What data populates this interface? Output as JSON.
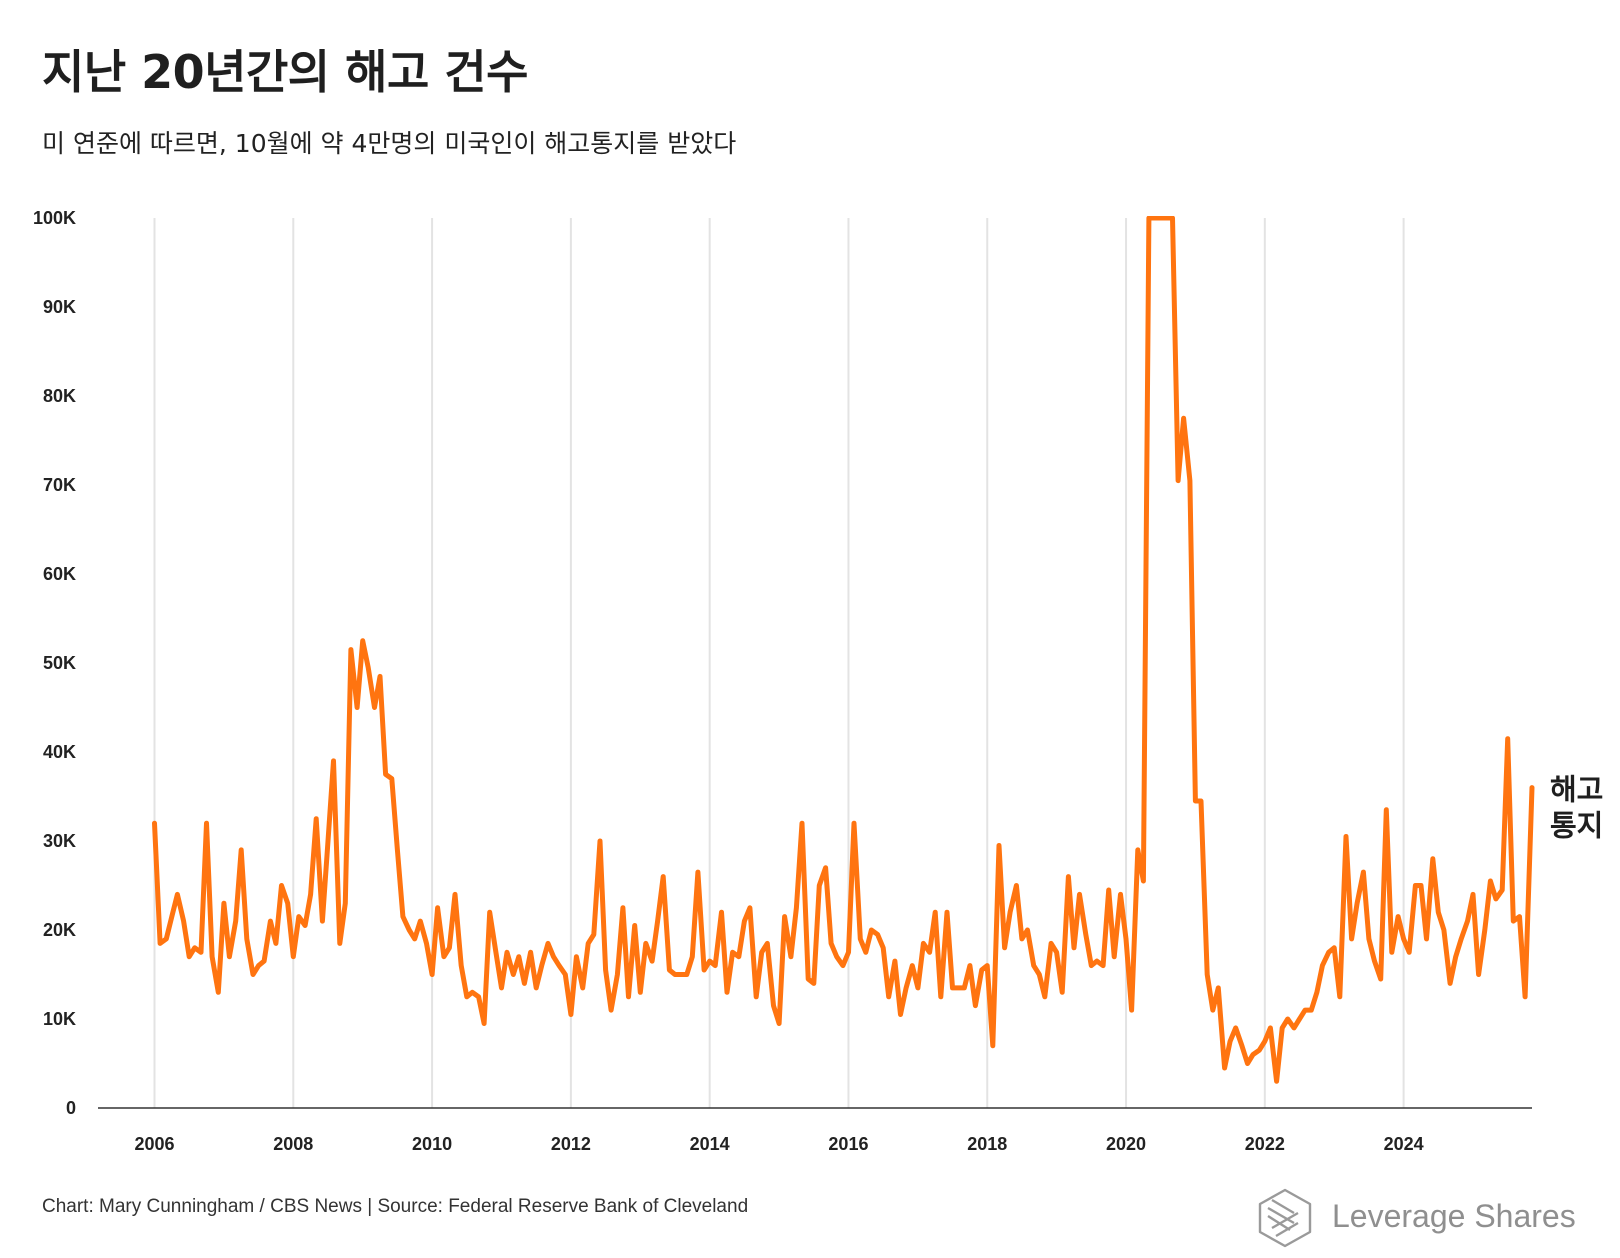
{
  "header": {
    "title": "지난 20년간의 해고 건수",
    "subtitle": "미 연준에 따르면, 10월에 약 4만명의 미국인이 해고통지를 받았다"
  },
  "footer": {
    "credit": "Chart: Mary Cunningham / CBS News | Source: Federal Reserve Bank of Cleveland"
  },
  "logo": {
    "text": "Leverage Shares",
    "icon": "leverage-shares-logo-icon"
  },
  "colors": {
    "line": "#ff7410",
    "grid": "#e3e3e3",
    "axis": "#333333",
    "text": "#222222"
  },
  "chart_data": {
    "type": "line",
    "title": "지난 20년간의 해고 건수",
    "subtitle": "미 연준에 따르면, 10월에 약 4만명의 미국인이 해고통지를 받았다",
    "xlabel": "",
    "ylabel": "",
    "xlim": [
      2006,
      2025.85
    ],
    "ylim": [
      0,
      100000
    ],
    "grid": "vertical",
    "x_ticks": [
      2006,
      2008,
      2010,
      2012,
      2014,
      2016,
      2018,
      2020,
      2022,
      2024
    ],
    "x_tick_labels": [
      "2006",
      "2008",
      "2010",
      "2012",
      "2014",
      "2016",
      "2018",
      "2020",
      "2022",
      "2024"
    ],
    "y_ticks": [
      0,
      10000,
      20000,
      30000,
      40000,
      50000,
      60000,
      70000,
      80000,
      90000,
      100000
    ],
    "y_tick_labels": [
      "0",
      "10K",
      "20K",
      "30K",
      "40K",
      "50K",
      "60K",
      "70K",
      "80K",
      "90K",
      "100K"
    ],
    "series_label": [
      "해고",
      "통지"
    ],
    "series": [
      {
        "name": "해고통지",
        "points": [
          [
            2006.0,
            32000
          ],
          [
            2006.08,
            18500
          ],
          [
            2006.17,
            19000
          ],
          [
            2006.25,
            21500
          ],
          [
            2006.33,
            24000
          ],
          [
            2006.42,
            21000
          ],
          [
            2006.5,
            17000
          ],
          [
            2006.58,
            18000
          ],
          [
            2006.67,
            17500
          ],
          [
            2006.75,
            32000
          ],
          [
            2006.83,
            17000
          ],
          [
            2006.92,
            13000
          ],
          [
            2007.0,
            23000
          ],
          [
            2007.08,
            17000
          ],
          [
            2007.17,
            21000
          ],
          [
            2007.25,
            29000
          ],
          [
            2007.33,
            19000
          ],
          [
            2007.42,
            15000
          ],
          [
            2007.5,
            16000
          ],
          [
            2007.58,
            16500
          ],
          [
            2007.67,
            21000
          ],
          [
            2007.75,
            18500
          ],
          [
            2007.83,
            25000
          ],
          [
            2007.92,
            23000
          ],
          [
            2008.0,
            17000
          ],
          [
            2008.08,
            21500
          ],
          [
            2008.17,
            20500
          ],
          [
            2008.25,
            24000
          ],
          [
            2008.33,
            32500
          ],
          [
            2008.42,
            21000
          ],
          [
            2008.5,
            30000
          ],
          [
            2008.58,
            39000
          ],
          [
            2008.67,
            18500
          ],
          [
            2008.75,
            23000
          ],
          [
            2008.83,
            51500
          ],
          [
            2008.92,
            45000
          ],
          [
            2009.0,
            52500
          ],
          [
            2009.08,
            49500
          ],
          [
            2009.17,
            45000
          ],
          [
            2009.25,
            48500
          ],
          [
            2009.33,
            37500
          ],
          [
            2009.42,
            37000
          ],
          [
            2009.5,
            29000
          ],
          [
            2009.58,
            21500
          ],
          [
            2009.67,
            20000
          ],
          [
            2009.75,
            19000
          ],
          [
            2009.83,
            21000
          ],
          [
            2009.92,
            18500
          ],
          [
            2010.0,
            15000
          ],
          [
            2010.08,
            22500
          ],
          [
            2010.17,
            17000
          ],
          [
            2010.25,
            18000
          ],
          [
            2010.33,
            24000
          ],
          [
            2010.42,
            16000
          ],
          [
            2010.5,
            12500
          ],
          [
            2010.58,
            13000
          ],
          [
            2010.67,
            12500
          ],
          [
            2010.75,
            9500
          ],
          [
            2010.83,
            22000
          ],
          [
            2010.92,
            17500
          ],
          [
            2011.0,
            13500
          ],
          [
            2011.08,
            17500
          ],
          [
            2011.17,
            15000
          ],
          [
            2011.25,
            17000
          ],
          [
            2011.33,
            14000
          ],
          [
            2011.42,
            17500
          ],
          [
            2011.5,
            13500
          ],
          [
            2011.58,
            16000
          ],
          [
            2011.67,
            18500
          ],
          [
            2011.75,
            17000
          ],
          [
            2011.83,
            16000
          ],
          [
            2011.92,
            15000
          ],
          [
            2012.0,
            10500
          ],
          [
            2012.08,
            17000
          ],
          [
            2012.17,
            13500
          ],
          [
            2012.25,
            18500
          ],
          [
            2012.33,
            19500
          ],
          [
            2012.42,
            30000
          ],
          [
            2012.5,
            15500
          ],
          [
            2012.58,
            11000
          ],
          [
            2012.67,
            15000
          ],
          [
            2012.75,
            22500
          ],
          [
            2012.83,
            12500
          ],
          [
            2012.92,
            20500
          ],
          [
            2013.0,
            13000
          ],
          [
            2013.08,
            18500
          ],
          [
            2013.17,
            16500
          ],
          [
            2013.25,
            21000
          ],
          [
            2013.33,
            26000
          ],
          [
            2013.42,
            15500
          ],
          [
            2013.5,
            15000
          ],
          [
            2013.58,
            15000
          ],
          [
            2013.67,
            15000
          ],
          [
            2013.75,
            17000
          ],
          [
            2013.83,
            26500
          ],
          [
            2013.92,
            15500
          ],
          [
            2014.0,
            16500
          ],
          [
            2014.08,
            16000
          ],
          [
            2014.17,
            22000
          ],
          [
            2014.25,
            13000
          ],
          [
            2014.33,
            17500
          ],
          [
            2014.42,
            17000
          ],
          [
            2014.5,
            21000
          ],
          [
            2014.58,
            22500
          ],
          [
            2014.67,
            12500
          ],
          [
            2014.75,
            17500
          ],
          [
            2014.83,
            18500
          ],
          [
            2014.92,
            11500
          ],
          [
            2015.0,
            9500
          ],
          [
            2015.08,
            21500
          ],
          [
            2015.17,
            17000
          ],
          [
            2015.25,
            22500
          ],
          [
            2015.33,
            32000
          ],
          [
            2015.42,
            14500
          ],
          [
            2015.5,
            14000
          ],
          [
            2015.58,
            25000
          ],
          [
            2015.67,
            27000
          ],
          [
            2015.75,
            18500
          ],
          [
            2015.83,
            17000
          ],
          [
            2015.92,
            16000
          ],
          [
            2016.0,
            17500
          ],
          [
            2016.08,
            32000
          ],
          [
            2016.17,
            19000
          ],
          [
            2016.25,
            17500
          ],
          [
            2016.33,
            20000
          ],
          [
            2016.42,
            19500
          ],
          [
            2016.5,
            18000
          ],
          [
            2016.58,
            12500
          ],
          [
            2016.67,
            16500
          ],
          [
            2016.75,
            10500
          ],
          [
            2016.83,
            13500
          ],
          [
            2016.92,
            16000
          ],
          [
            2017.0,
            13500
          ],
          [
            2017.08,
            18500
          ],
          [
            2017.17,
            17500
          ],
          [
            2017.25,
            22000
          ],
          [
            2017.33,
            12500
          ],
          [
            2017.42,
            22000
          ],
          [
            2017.5,
            13500
          ],
          [
            2017.58,
            13500
          ],
          [
            2017.67,
            13500
          ],
          [
            2017.75,
            16000
          ],
          [
            2017.83,
            11500
          ],
          [
            2017.92,
            15500
          ],
          [
            2018.0,
            16000
          ],
          [
            2018.08,
            7000
          ],
          [
            2018.17,
            29500
          ],
          [
            2018.25,
            18000
          ],
          [
            2018.33,
            22000
          ],
          [
            2018.42,
            25000
          ],
          [
            2018.5,
            19000
          ],
          [
            2018.58,
            20000
          ],
          [
            2018.67,
            16000
          ],
          [
            2018.75,
            15000
          ],
          [
            2018.83,
            12500
          ],
          [
            2018.92,
            18500
          ],
          [
            2019.0,
            17500
          ],
          [
            2019.08,
            13000
          ],
          [
            2019.17,
            26000
          ],
          [
            2019.25,
            18000
          ],
          [
            2019.33,
            24000
          ],
          [
            2019.42,
            19500
          ],
          [
            2019.5,
            16000
          ],
          [
            2019.58,
            16500
          ],
          [
            2019.67,
            16000
          ],
          [
            2019.75,
            24500
          ],
          [
            2019.83,
            17000
          ],
          [
            2019.92,
            24000
          ],
          [
            2020.0,
            19000
          ],
          [
            2020.08,
            11000
          ],
          [
            2020.17,
            29000
          ],
          [
            2020.25,
            25500
          ],
          [
            2020.33,
            100000
          ],
          [
            2020.42,
            100000
          ],
          [
            2020.5,
            100000
          ],
          [
            2020.58,
            100000
          ],
          [
            2020.67,
            100000
          ],
          [
            2020.75,
            70500
          ],
          [
            2020.83,
            77500
          ],
          [
            2020.92,
            70500
          ],
          [
            2021.0,
            34500
          ],
          [
            2021.08,
            34500
          ],
          [
            2021.17,
            15000
          ],
          [
            2021.25,
            11000
          ],
          [
            2021.33,
            13500
          ],
          [
            2021.42,
            4500
          ],
          [
            2021.5,
            7500
          ],
          [
            2021.58,
            9000
          ],
          [
            2021.67,
            7000
          ],
          [
            2021.75,
            5000
          ],
          [
            2021.83,
            6000
          ],
          [
            2021.92,
            6500
          ],
          [
            2022.0,
            7500
          ],
          [
            2022.08,
            9000
          ],
          [
            2022.17,
            3000
          ],
          [
            2022.25,
            9000
          ],
          [
            2022.33,
            10000
          ],
          [
            2022.42,
            9000
          ],
          [
            2022.5,
            10000
          ],
          [
            2022.58,
            11000
          ],
          [
            2022.67,
            11000
          ],
          [
            2022.75,
            13000
          ],
          [
            2022.83,
            16000
          ],
          [
            2022.92,
            17500
          ],
          [
            2023.0,
            18000
          ],
          [
            2023.08,
            12500
          ],
          [
            2023.17,
            30500
          ],
          [
            2023.25,
            19000
          ],
          [
            2023.33,
            23000
          ],
          [
            2023.42,
            26500
          ],
          [
            2023.5,
            19000
          ],
          [
            2023.58,
            16500
          ],
          [
            2023.67,
            14500
          ],
          [
            2023.75,
            33500
          ],
          [
            2023.83,
            17500
          ],
          [
            2023.92,
            21500
          ],
          [
            2024.0,
            19000
          ],
          [
            2024.08,
            17500
          ],
          [
            2024.17,
            25000
          ],
          [
            2024.25,
            25000
          ],
          [
            2024.33,
            19000
          ],
          [
            2024.42,
            28000
          ],
          [
            2024.5,
            22000
          ],
          [
            2024.58,
            20000
          ],
          [
            2024.67,
            14000
          ],
          [
            2024.75,
            17000
          ],
          [
            2024.83,
            19000
          ],
          [
            2024.92,
            21000
          ],
          [
            2025.0,
            24000
          ],
          [
            2025.08,
            15000
          ],
          [
            2025.17,
            20000
          ],
          [
            2025.25,
            25500
          ],
          [
            2025.33,
            23500
          ],
          [
            2025.42,
            24500
          ],
          [
            2025.5,
            41500
          ],
          [
            2025.58,
            21000
          ],
          [
            2025.67,
            21500
          ],
          [
            2025.75,
            12500
          ],
          [
            2025.85,
            36000
          ]
        ]
      }
    ]
  }
}
